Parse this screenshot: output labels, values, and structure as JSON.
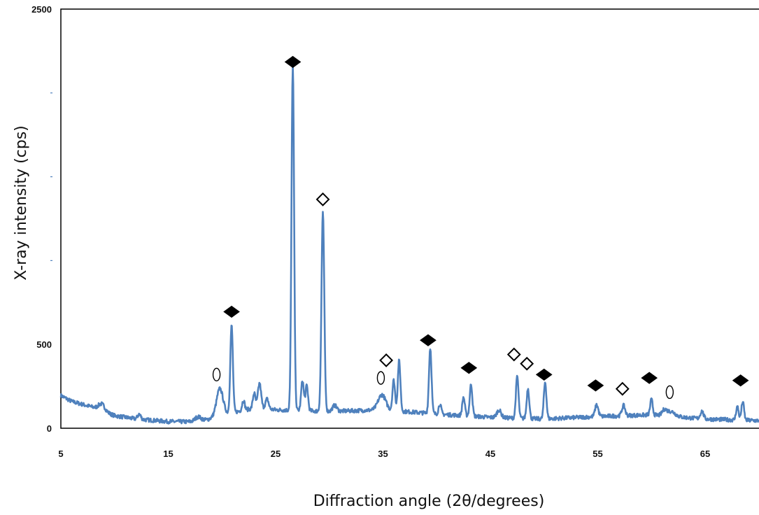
{
  "chart_data": {
    "type": "line",
    "xlabel": "Diffraction angle (2θ/degrees)",
    "ylabel": "X-ray intensity (cps)",
    "xlim": [
      5,
      70
    ],
    "ylim": [
      0,
      2500
    ],
    "x_ticks": [
      5,
      15,
      25,
      35,
      45,
      55,
      65
    ],
    "y_ticks": [
      0,
      500,
      2500
    ],
    "y_minor_ticks": [
      1000,
      1500,
      2000
    ],
    "grid": false,
    "line_color": "#4f81bd",
    "series": [
      {
        "baseline": [
          [
            5,
            195
          ],
          [
            6,
            160
          ],
          [
            8,
            125
          ],
          [
            10,
            75
          ],
          [
            12,
            55
          ],
          [
            15,
            40
          ],
          [
            18,
            38
          ],
          [
            20,
            80
          ],
          [
            23,
            120
          ],
          [
            25,
            110
          ],
          [
            30,
            100
          ],
          [
            35,
            110
          ],
          [
            40,
            85
          ],
          [
            45,
            65
          ],
          [
            50,
            55
          ],
          [
            55,
            70
          ],
          [
            60,
            80
          ],
          [
            65,
            55
          ],
          [
            70,
            45
          ]
        ],
        "peaks": [
          {
            "x": 8.8,
            "height": 40,
            "width": 0.3
          },
          {
            "x": 12.3,
            "height": 30,
            "width": 0.15
          },
          {
            "x": 17.8,
            "height": 30,
            "width": 0.3
          },
          {
            "x": 19.8,
            "height": 160,
            "width": 0.3
          },
          {
            "x": 20.9,
            "height": 520,
            "width": 0.12
          },
          {
            "x": 22.0,
            "height": 60,
            "width": 0.12
          },
          {
            "x": 23.0,
            "height": 90,
            "width": 0.12
          },
          {
            "x": 23.5,
            "height": 150,
            "width": 0.15
          },
          {
            "x": 24.2,
            "height": 60,
            "width": 0.15
          },
          {
            "x": 26.6,
            "height": 2050,
            "width": 0.12
          },
          {
            "x": 27.5,
            "height": 180,
            "width": 0.12
          },
          {
            "x": 27.9,
            "height": 150,
            "width": 0.12
          },
          {
            "x": 29.4,
            "height": 1180,
            "width": 0.13
          },
          {
            "x": 30.5,
            "height": 35,
            "width": 0.2
          },
          {
            "x": 34.9,
            "height": 90,
            "width": 0.35
          },
          {
            "x": 36.0,
            "height": 180,
            "width": 0.12
          },
          {
            "x": 36.5,
            "height": 300,
            "width": 0.12
          },
          {
            "x": 39.4,
            "height": 390,
            "width": 0.12
          },
          {
            "x": 40.3,
            "height": 60,
            "width": 0.12
          },
          {
            "x": 42.5,
            "height": 110,
            "width": 0.12
          },
          {
            "x": 43.2,
            "height": 190,
            "width": 0.12
          },
          {
            "x": 45.8,
            "height": 45,
            "width": 0.2
          },
          {
            "x": 47.5,
            "height": 250,
            "width": 0.12
          },
          {
            "x": 48.5,
            "height": 180,
            "width": 0.12
          },
          {
            "x": 50.1,
            "height": 220,
            "width": 0.12
          },
          {
            "x": 54.9,
            "height": 70,
            "width": 0.15
          },
          {
            "x": 57.4,
            "height": 60,
            "width": 0.15
          },
          {
            "x": 60.0,
            "height": 90,
            "width": 0.12
          },
          {
            "x": 61.2,
            "height": 30,
            "width": 0.2
          },
          {
            "x": 61.8,
            "height": 30,
            "width": 0.4
          },
          {
            "x": 64.7,
            "height": 45,
            "width": 0.15
          },
          {
            "x": 68.0,
            "height": 80,
            "width": 0.12
          },
          {
            "x": 68.5,
            "height": 110,
            "width": 0.12
          }
        ]
      }
    ],
    "annotations": [
      {
        "symbol": "filled-diamond",
        "x": 20.9,
        "y": 695
      },
      {
        "symbol": "filled-diamond",
        "x": 26.6,
        "y": 2185
      },
      {
        "symbol": "open-diamond",
        "x": 29.4,
        "y": 1365
      },
      {
        "symbol": "open-circle",
        "x": 19.5,
        "y": 320
      },
      {
        "symbol": "open-circle",
        "x": 34.8,
        "y": 300
      },
      {
        "symbol": "open-diamond",
        "x": 35.3,
        "y": 405
      },
      {
        "symbol": "filled-diamond",
        "x": 39.2,
        "y": 525
      },
      {
        "symbol": "filled-diamond",
        "x": 43.0,
        "y": 360
      },
      {
        "symbol": "open-diamond",
        "x": 47.2,
        "y": 440
      },
      {
        "symbol": "open-diamond",
        "x": 48.4,
        "y": 385
      },
      {
        "symbol": "filled-diamond",
        "x": 50.0,
        "y": 320
      },
      {
        "symbol": "filled-diamond",
        "x": 54.8,
        "y": 255
      },
      {
        "symbol": "open-diamond",
        "x": 57.3,
        "y": 235
      },
      {
        "symbol": "filled-diamond",
        "x": 59.8,
        "y": 300
      },
      {
        "symbol": "open-circle",
        "x": 61.7,
        "y": 215
      },
      {
        "symbol": "filled-diamond",
        "x": 68.3,
        "y": 285
      }
    ]
  }
}
